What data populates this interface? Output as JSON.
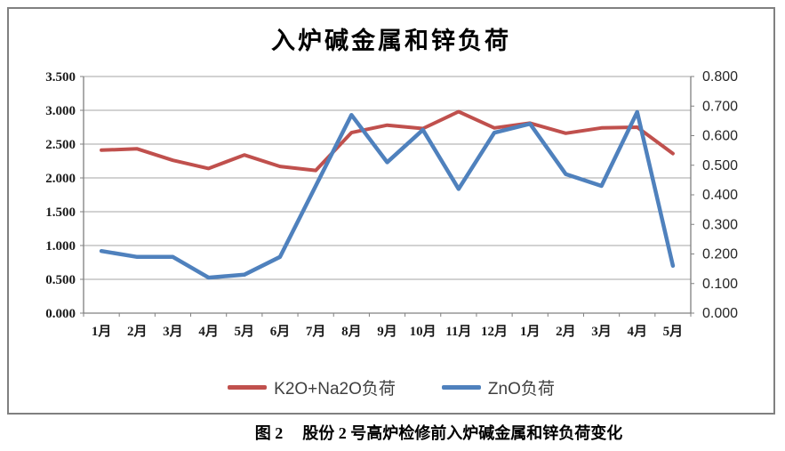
{
  "chart": {
    "title": "入炉碱金属和锌负荷",
    "left_axis": {
      "ticks": [
        "3.500",
        "3.000",
        "2.500",
        "2.000",
        "1.500",
        "1.000",
        "0.500",
        "0.000"
      ]
    },
    "right_axis": {
      "ticks": [
        "0.800",
        "0.700",
        "0.600",
        "0.500",
        "0.400",
        "0.300",
        "0.200",
        "0.100",
        "0.000"
      ]
    },
    "colors": {
      "series_red": "#C0504D",
      "series_blue": "#4F81BD",
      "gridline": "#A6A6A6",
      "axis_line": "#808080",
      "frame_border": "#808080"
    }
  },
  "chart_data": {
    "type": "line",
    "title": "入炉碱金属和锌负荷",
    "categories": [
      "1月",
      "2月",
      "3月",
      "4月",
      "5月",
      "6月",
      "7月",
      "8月",
      "9月",
      "10月",
      "11月",
      "12月",
      "1月",
      "2月",
      "3月",
      "4月",
      "5月"
    ],
    "series": [
      {
        "name": "K2O+Na2O负荷",
        "axis": "left",
        "color": "#C0504D",
        "values": [
          2.41,
          2.43,
          2.26,
          2.14,
          2.34,
          2.17,
          2.11,
          2.67,
          2.78,
          2.73,
          2.98,
          2.74,
          2.81,
          2.66,
          2.74,
          2.75,
          2.36
        ]
      },
      {
        "name": "ZnO负荷",
        "axis": "right",
        "color": "#4F81BD",
        "values": [
          0.21,
          0.19,
          0.19,
          0.12,
          0.13,
          0.19,
          0.43,
          0.67,
          0.51,
          0.62,
          0.42,
          0.61,
          0.64,
          0.47,
          0.43,
          0.68,
          0.16
        ]
      }
    ],
    "left_ylim": [
      0,
      3.5
    ],
    "right_ylim": [
      0,
      0.8
    ],
    "grid": true,
    "legend_position": "bottom"
  },
  "caption": {
    "fig_label": "图 2",
    "text": "股份 2 号高炉检修前入炉碱金属和锌负荷变化"
  }
}
